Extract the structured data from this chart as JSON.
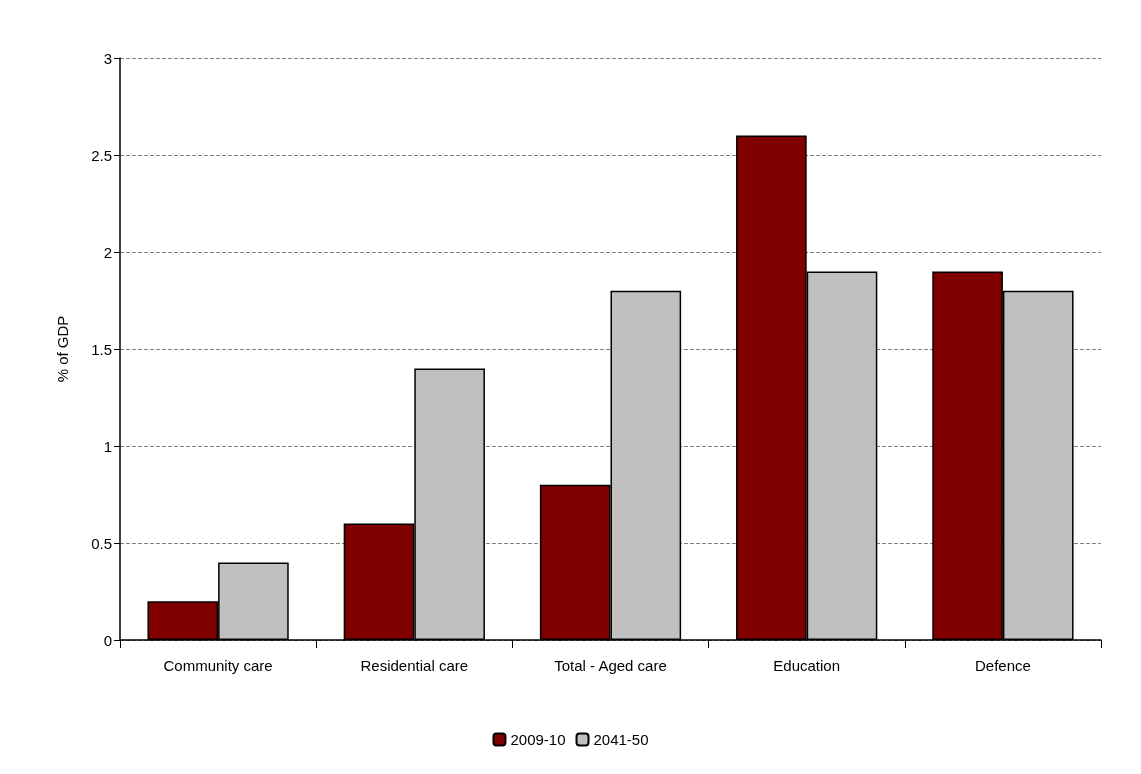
{
  "chart_data": {
    "type": "bar",
    "ylabel": "% of GDP",
    "categories": [
      "Community care",
      "Residential care",
      "Total - Aged care",
      "Education",
      "Defence"
    ],
    "series": [
      {
        "name": "2009-10",
        "color": "#800000",
        "values": [
          0.2,
          0.6,
          0.8,
          2.6,
          1.9
        ]
      },
      {
        "name": "2041-50",
        "color": "#c0c0c0",
        "values": [
          0.4,
          1.4,
          1.8,
          1.9,
          1.8
        ]
      }
    ],
    "ylim": [
      0,
      3
    ],
    "yticks": [
      0,
      0.5,
      1,
      1.5,
      2,
      2.5,
      3
    ],
    "grid": "y",
    "legend": "bottom"
  }
}
